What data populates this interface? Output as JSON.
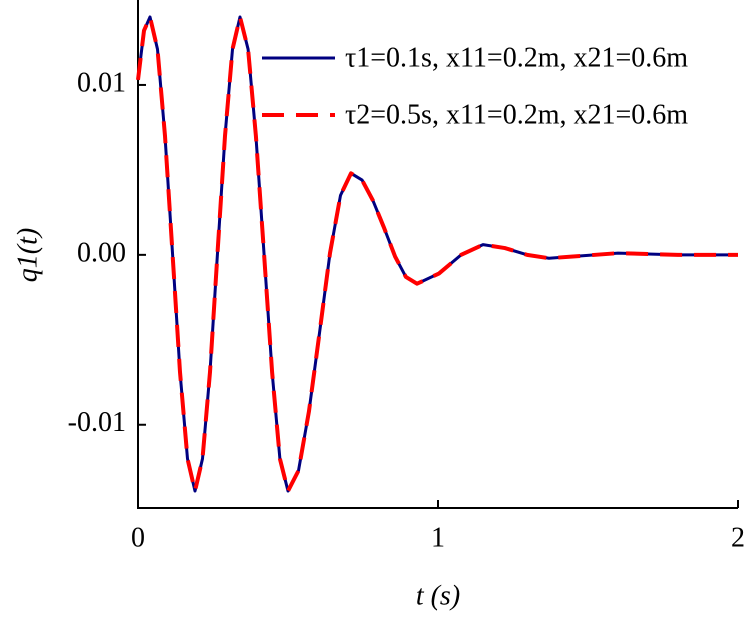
{
  "chart_data": {
    "type": "line",
    "x_label": "t (s)",
    "y_label": "q1(t)",
    "x": [
      0,
      0.02,
      0.04,
      0.065,
      0.09,
      0.115,
      0.14,
      0.165,
      0.19,
      0.215,
      0.24,
      0.265,
      0.29,
      0.315,
      0.34,
      0.367,
      0.393,
      0.42,
      0.447,
      0.473,
      0.5,
      0.535,
      0.57,
      0.605,
      0.64,
      0.675,
      0.71,
      0.747,
      0.783,
      0.82,
      0.857,
      0.893,
      0.93,
      1.003,
      1.077,
      1.15,
      1.223,
      1.297,
      1.37,
      1.6,
      1.8,
      2.0
    ],
    "series": [
      {
        "name": "τ1=0.1s, x11=0.2m, x21=0.6m",
        "color": "#000080",
        "dash": false,
        "values": [
          0.0103,
          0.0132,
          0.014,
          0.0121,
          0.007,
          0.0001,
          -0.0069,
          -0.012,
          -0.0139,
          -0.012,
          -0.0069,
          0.0001,
          0.007,
          0.0121,
          0.014,
          0.0121,
          0.007,
          0.0001,
          -0.0069,
          -0.012,
          -0.0139,
          -0.0127,
          -0.0092,
          -0.0046,
          0.0001,
          0.0035,
          0.0048,
          0.0044,
          0.0032,
          0.0016,
          -0.0001,
          -0.0013,
          -0.0017,
          -0.0011,
          0.0,
          0.0006,
          0.0004,
          0.0,
          -0.0002,
          0.0001,
          0.0,
          0.0
        ]
      },
      {
        "name": "τ2=0.5s, x11=0.2m, x21=0.6m",
        "color": "#ff0000",
        "dash": true,
        "values": [
          0.0103,
          0.0132,
          0.014,
          0.0121,
          0.007,
          0.0001,
          -0.0069,
          -0.012,
          -0.0139,
          -0.012,
          -0.0069,
          0.0001,
          0.007,
          0.0121,
          0.014,
          0.0121,
          0.007,
          0.0001,
          -0.0069,
          -0.012,
          -0.0139,
          -0.0127,
          -0.0092,
          -0.0046,
          0.0001,
          0.0035,
          0.0048,
          0.0044,
          0.0032,
          0.0016,
          -0.0001,
          -0.0013,
          -0.0017,
          -0.0011,
          0.0,
          0.0006,
          0.0004,
          0.0,
          -0.0002,
          0.0001,
          0.0,
          0.0
        ]
      }
    ],
    "xlim": [
      0,
      2
    ],
    "xticks": [
      0,
      1,
      2
    ],
    "ylim": [
      -0.0149,
      0.015
    ],
    "yticks": [
      -0.01,
      {
        "value": 0,
        "label": "0.00"
      },
      0.01
    ],
    "legend": "upper right"
  }
}
